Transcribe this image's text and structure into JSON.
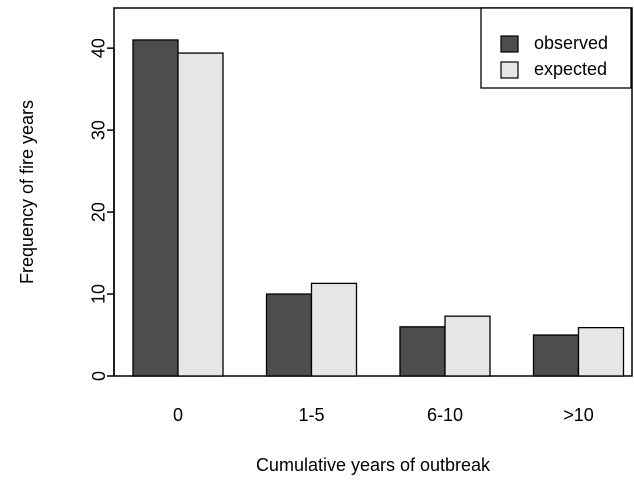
{
  "chart_data": {
    "type": "bar",
    "xlabel": "Cumulative years of outbreak",
    "ylabel": "Frequency of fire years",
    "categories": [
      "0",
      "1-5",
      "6-10",
      ">10"
    ],
    "series": [
      {
        "name": "observed",
        "color": "#4d4d4d",
        "values": [
          41,
          10,
          6,
          5
        ]
      },
      {
        "name": "expected",
        "color": "#e6e6e6",
        "values": [
          39.4,
          11.3,
          7.3,
          5.9
        ]
      }
    ],
    "ylim": [
      0,
      44.9
    ],
    "yticks": [
      0,
      10,
      20,
      30,
      40
    ],
    "legend": "top-right"
  }
}
